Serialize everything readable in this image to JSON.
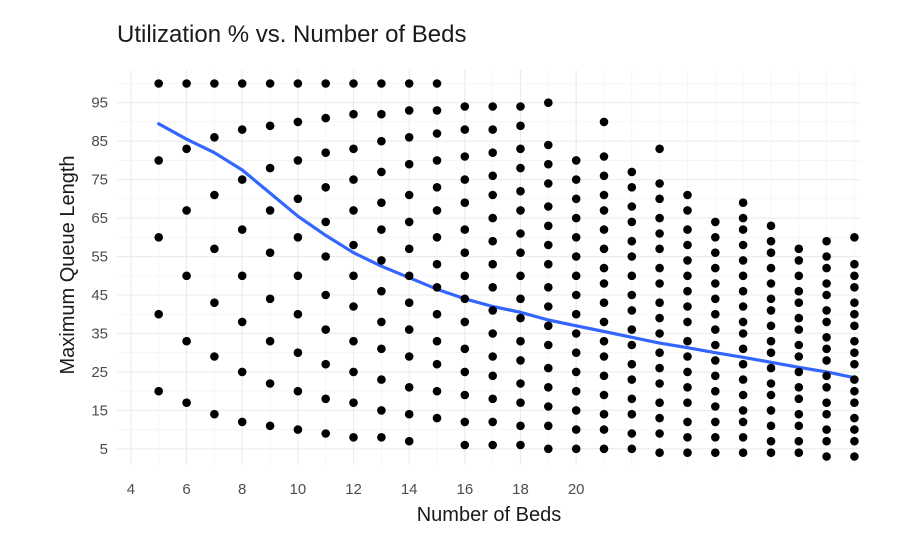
{
  "chart_data": {
    "type": "scatter",
    "title": "Utilization % vs. Number of Beds",
    "xlabel": "Number of Beds",
    "ylabel": "Maximum Queue Length",
    "xlim": [
      3.5,
      30.2
    ],
    "ylim": [
      0.8,
      103.5
    ],
    "x_tick_values": [
      4,
      6,
      8,
      10,
      12,
      14,
      16,
      18,
      20
    ],
    "x_tick_labels": [
      "4",
      "6",
      "8",
      "10",
      "12",
      "14",
      "16",
      "18",
      "20"
    ],
    "y_tick_values": [
      5,
      15,
      25,
      35,
      45,
      55,
      65,
      75,
      85,
      95
    ],
    "y_tick_labels": [
      "5",
      "15",
      "25",
      "35",
      "45",
      "55",
      "65",
      "75",
      "85",
      "95"
    ],
    "grid": true,
    "point_color": "#000000",
    "line_color": "#3366ff",
    "points": [
      {
        "x": 5,
        "y": [
          100,
          80,
          60,
          40,
          20
        ]
      },
      {
        "x": 6,
        "y": [
          100,
          83,
          67,
          50,
          33,
          17
        ]
      },
      {
        "x": 7,
        "y": [
          100,
          86,
          71,
          57,
          43,
          29,
          14
        ]
      },
      {
        "x": 8,
        "y": [
          100,
          88,
          75,
          62,
          50,
          38,
          25,
          12
        ]
      },
      {
        "x": 9,
        "y": [
          100,
          89,
          78,
          67,
          56,
          44,
          33,
          22,
          11
        ]
      },
      {
        "x": 10,
        "y": [
          100,
          90,
          80,
          70,
          60,
          50,
          40,
          30,
          20,
          10
        ]
      },
      {
        "x": 11,
        "y": [
          100,
          91,
          82,
          73,
          64,
          55,
          45,
          36,
          27,
          18,
          9
        ]
      },
      {
        "x": 12,
        "y": [
          100,
          92,
          83,
          75,
          67,
          58,
          50,
          42,
          33,
          25,
          17,
          8
        ]
      },
      {
        "x": 13,
        "y": [
          100,
          92,
          85,
          77,
          69,
          62,
          54,
          46,
          38,
          31,
          23,
          15,
          8
        ]
      },
      {
        "x": 14,
        "y": [
          100,
          93,
          86,
          79,
          71,
          64,
          57,
          50,
          43,
          36,
          29,
          21,
          14,
          7
        ]
      },
      {
        "x": 15,
        "y": [
          100,
          93,
          87,
          80,
          73,
          67,
          60,
          53,
          47,
          40,
          33,
          27,
          20,
          13
        ]
      },
      {
        "x": 16,
        "y": [
          94,
          88,
          81,
          75,
          69,
          62,
          56,
          50,
          44,
          38,
          31,
          25,
          19,
          12,
          6
        ]
      },
      {
        "x": 17,
        "y": [
          94,
          88,
          82,
          76,
          71,
          65,
          59,
          53,
          47,
          41,
          35,
          29,
          24,
          18,
          12,
          6
        ]
      },
      {
        "x": 18,
        "y": [
          94,
          89,
          83,
          78,
          72,
          67,
          61,
          56,
          50,
          44,
          39,
          33,
          28,
          22,
          17,
          11,
          6
        ]
      },
      {
        "x": 19,
        "y": [
          95,
          84,
          79,
          74,
          68,
          63,
          58,
          53,
          47,
          42,
          37,
          32,
          26,
          21,
          16,
          11,
          5
        ]
      },
      {
        "x": 20,
        "y": [
          80,
          75,
          70,
          65,
          60,
          55,
          50,
          45,
          40,
          35,
          30,
          25,
          20,
          15,
          10,
          5
        ]
      },
      {
        "x": 21,
        "y": [
          90,
          81,
          76,
          71,
          67,
          62,
          57,
          52,
          48,
          43,
          38,
          33,
          29,
          24,
          19,
          14,
          10,
          5
        ]
      },
      {
        "x": 22,
        "y": [
          77,
          73,
          68,
          64,
          59,
          55,
          50,
          45,
          41,
          36,
          32,
          27,
          23,
          18,
          14,
          9,
          5
        ]
      },
      {
        "x": 23,
        "y": [
          83,
          74,
          70,
          65,
          61,
          57,
          52,
          48,
          43,
          39,
          35,
          30,
          26,
          22,
          17,
          13,
          9,
          4
        ]
      },
      {
        "x": 24,
        "y": [
          71,
          67,
          62,
          58,
          54,
          50,
          46,
          42,
          38,
          33,
          29,
          25,
          21,
          17,
          12,
          8,
          4
        ]
      },
      {
        "x": 25,
        "y": [
          64,
          60,
          56,
          52,
          48,
          44,
          40,
          36,
          32,
          28,
          24,
          20,
          16,
          12,
          8,
          4
        ]
      },
      {
        "x": 26,
        "y": [
          69,
          65,
          62,
          58,
          54,
          50,
          46,
          42,
          38,
          35,
          31,
          27,
          23,
          19,
          15,
          12,
          8,
          4
        ]
      },
      {
        "x": 27,
        "y": [
          63,
          59,
          56,
          52,
          48,
          44,
          41,
          37,
          33,
          30,
          26,
          22,
          19,
          15,
          11,
          7,
          4
        ]
      },
      {
        "x": 28,
        "y": [
          57,
          54,
          50,
          46,
          43,
          39,
          36,
          32,
          29,
          25,
          21,
          18,
          14,
          11,
          7,
          4
        ]
      },
      {
        "x": 29,
        "y": [
          59,
          55,
          52,
          48,
          45,
          41,
          38,
          34,
          31,
          28,
          24,
          21,
          17,
          14,
          10,
          7,
          3
        ]
      },
      {
        "x": 30,
        "y": [
          60,
          53,
          50,
          47,
          43,
          40,
          37,
          33,
          30,
          27,
          23,
          20,
          17,
          13,
          10,
          7,
          3
        ]
      }
    ],
    "smooth_line": {
      "x": [
        5,
        6,
        7,
        8,
        9,
        10,
        11,
        12,
        13,
        14,
        15,
        16,
        17,
        18,
        19,
        20,
        21,
        22,
        23,
        24,
        25,
        26,
        27,
        28,
        29,
        30
      ],
      "y": [
        89.5,
        85.5,
        82,
        77.5,
        71.5,
        65.5,
        60.5,
        56,
        52.5,
        49.5,
        46.5,
        44,
        42,
        40.5,
        38.5,
        37,
        35.5,
        34,
        32.5,
        31.3,
        30,
        28.8,
        27.5,
        26.2,
        25,
        23.5
      ]
    }
  }
}
